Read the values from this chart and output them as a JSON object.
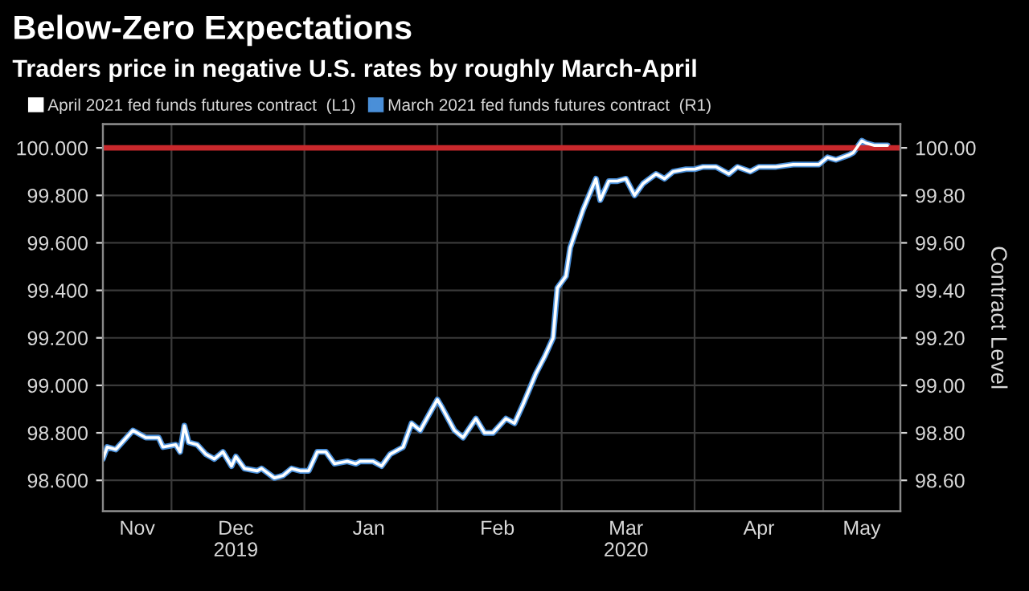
{
  "chart_data": {
    "type": "line",
    "title": "Below-Zero Expectations",
    "subtitle": "Traders price in negative U.S. rates by roughly March-April",
    "y2label": "Contract Level",
    "x": [
      "2019-11-15",
      "2019-11-16",
      "2019-11-18",
      "2019-11-22",
      "2019-11-25",
      "2019-11-28",
      "2019-11-29",
      "2019-12-02",
      "2019-12-03",
      "2019-12-04",
      "2019-12-05",
      "2019-12-07",
      "2019-12-09",
      "2019-12-11",
      "2019-12-13",
      "2019-12-15",
      "2019-12-16",
      "2019-12-18",
      "2019-12-21",
      "2019-12-22",
      "2019-12-25",
      "2019-12-27",
      "2019-12-29",
      "2019-12-31",
      "2020-01-02",
      "2020-01-04",
      "2020-01-06",
      "2020-01-08",
      "2020-01-11",
      "2020-01-13",
      "2020-01-14",
      "2020-01-17",
      "2020-01-19",
      "2020-01-21",
      "2020-01-24",
      "2020-01-26",
      "2020-01-28",
      "2020-02-01",
      "2020-02-02",
      "2020-02-05",
      "2020-02-07",
      "2020-02-10",
      "2020-02-12",
      "2020-02-14",
      "2020-02-17",
      "2020-02-19",
      "2020-02-21",
      "2020-02-24",
      "2020-02-26",
      "2020-02-28",
      "2020-02-29",
      "2020-03-02",
      "2020-03-03",
      "2020-03-06",
      "2020-03-09",
      "2020-03-10",
      "2020-03-12",
      "2020-03-14",
      "2020-03-16",
      "2020-03-18",
      "2020-03-20",
      "2020-03-23",
      "2020-03-25",
      "2020-03-27",
      "2020-03-30",
      "2020-04-01",
      "2020-04-03",
      "2020-04-06",
      "2020-04-09",
      "2020-04-11",
      "2020-04-14",
      "2020-04-16",
      "2020-04-20",
      "2020-04-24",
      "2020-04-30",
      "2020-05-02",
      "2020-05-04",
      "2020-05-07",
      "2020-05-08",
      "2020-05-10",
      "2020-05-11",
      "2020-05-13",
      "2020-05-16"
    ],
    "series": [
      {
        "name": "March 2021 fed funds futures contract  (R1)",
        "color": "#4a8fd8",
        "axis": "y2",
        "values": [
          98.69,
          98.74,
          98.73,
          98.81,
          98.78,
          98.78,
          98.74,
          98.75,
          98.72,
          98.83,
          98.76,
          98.75,
          98.71,
          98.69,
          98.72,
          98.66,
          98.7,
          98.65,
          98.64,
          98.65,
          98.61,
          98.62,
          98.65,
          98.64,
          98.64,
          98.72,
          98.72,
          98.67,
          98.68,
          98.67,
          98.68,
          98.68,
          98.66,
          98.71,
          98.74,
          98.84,
          98.81,
          98.94,
          98.91,
          98.81,
          98.78,
          98.86,
          98.8,
          98.8,
          98.86,
          98.84,
          98.92,
          99.05,
          99.12,
          99.2,
          99.41,
          99.46,
          99.58,
          99.74,
          99.87,
          99.78,
          99.86,
          99.86,
          99.87,
          99.8,
          99.85,
          99.89,
          99.87,
          99.9,
          99.91,
          99.91,
          99.92,
          99.92,
          99.89,
          99.92,
          99.9,
          99.92,
          99.92,
          99.93,
          99.93,
          99.96,
          99.95,
          99.97,
          99.98,
          100.03,
          100.02,
          100.01,
          100.01
        ]
      },
      {
        "name": "April 2021 fed funds futures contract  (L1)",
        "color": "#ffffff",
        "values": [
          98.69,
          98.74,
          98.73,
          98.81,
          98.78,
          98.78,
          98.74,
          98.75,
          98.72,
          98.83,
          98.76,
          98.75,
          98.71,
          98.69,
          98.72,
          98.66,
          98.7,
          98.65,
          98.64,
          98.65,
          98.61,
          98.62,
          98.65,
          98.64,
          98.64,
          98.72,
          98.72,
          98.67,
          98.68,
          98.67,
          98.68,
          98.68,
          98.66,
          98.71,
          98.74,
          98.84,
          98.81,
          98.94,
          98.91,
          98.81,
          98.78,
          98.86,
          98.8,
          98.8,
          98.86,
          98.84,
          98.92,
          99.05,
          99.12,
          99.2,
          99.41,
          99.46,
          99.58,
          99.74,
          99.87,
          99.78,
          99.86,
          99.86,
          99.87,
          99.8,
          99.85,
          99.89,
          99.87,
          99.9,
          99.91,
          99.91,
          99.92,
          99.92,
          99.89,
          99.92,
          99.9,
          99.92,
          99.92,
          99.93,
          99.93,
          99.96,
          99.95,
          99.97,
          99.98,
          100.03,
          100.02,
          100.01,
          100.01
        ]
      }
    ],
    "xlim": [
      "2019-11-15",
      "2020-05-19"
    ],
    "xticks": [
      {
        "value": "2019-12-01",
        "label": null
      },
      {
        "value": "2020-01-01",
        "label": null
      },
      {
        "value": "2020-02-01",
        "label": null
      },
      {
        "value": "2020-03-01",
        "label": null
      },
      {
        "value": "2020-04-01",
        "label": null
      },
      {
        "value": "2020-05-01",
        "label": null
      },
      {
        "value": "2019-11-23",
        "label": "Nov"
      },
      {
        "value": "2019-12-16",
        "label": "Dec\n2019"
      },
      {
        "value": "2020-01-16",
        "label": "Jan"
      },
      {
        "value": "2020-02-15",
        "label": "Feb"
      },
      {
        "value": "2020-03-16",
        "label": "Mar\n2020"
      },
      {
        "value": "2020-04-16",
        "label": "Apr"
      },
      {
        "value": "2020-05-10",
        "label": "May"
      }
    ],
    "ylim": [
      98.47,
      100.1
    ],
    "yticks": [
      {
        "value": 98.6,
        "label": "98.600"
      },
      {
        "value": 98.8,
        "label": "98.800"
      },
      {
        "value": 99.0,
        "label": "99.000"
      },
      {
        "value": 99.2,
        "label": "99.200"
      },
      {
        "value": 99.4,
        "label": "99.400"
      },
      {
        "value": 99.6,
        "label": "99.600"
      },
      {
        "value": 99.8,
        "label": "99.800"
      },
      {
        "value": 100.0,
        "label": "100.000"
      }
    ],
    "y2lim": [
      98.47,
      100.1
    ],
    "y2ticks": [
      {
        "value": 98.6,
        "label": "98.60"
      },
      {
        "value": 98.8,
        "label": "98.80"
      },
      {
        "value": 99.0,
        "label": "99.00"
      },
      {
        "value": 99.2,
        "label": "99.20"
      },
      {
        "value": 99.4,
        "label": "99.40"
      },
      {
        "value": 99.6,
        "label": "99.60"
      },
      {
        "value": 99.8,
        "label": "99.80"
      },
      {
        "value": 100.0,
        "label": "100.00"
      }
    ],
    "ref_lines": [
      {
        "axis": "y",
        "value": 100.0,
        "label": null,
        "color": "#c8282c"
      }
    ],
    "grid": true,
    "legend": "top left",
    "marker": "none",
    "line_style": "solid"
  }
}
